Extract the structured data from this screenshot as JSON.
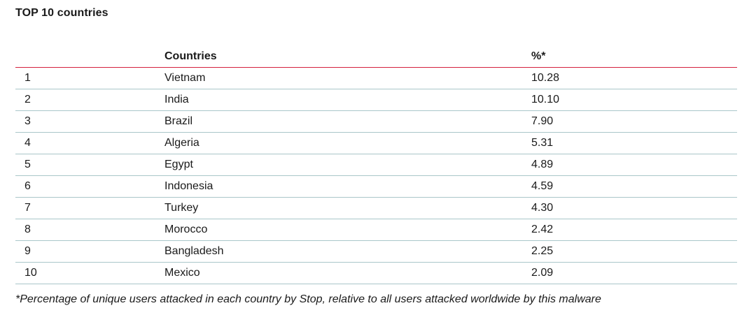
{
  "title": "TOP 10 countries",
  "table": {
    "headers": {
      "rank": "",
      "country": "Countries",
      "percent": "%*"
    },
    "rows": [
      {
        "rank": "1",
        "country": "Vietnam",
        "percent": "10.28"
      },
      {
        "rank": "2",
        "country": "India",
        "percent": "10.10"
      },
      {
        "rank": "3",
        "country": "Brazil",
        "percent": "7.90"
      },
      {
        "rank": "4",
        "country": "Algeria",
        "percent": "5.31"
      },
      {
        "rank": "5",
        "country": "Egypt",
        "percent": "4.89"
      },
      {
        "rank": "6",
        "country": "Indonesia",
        "percent": "4.59"
      },
      {
        "rank": "7",
        "country": "Turkey",
        "percent": "4.30"
      },
      {
        "rank": "8",
        "country": "Morocco",
        "percent": "2.42"
      },
      {
        "rank": "9",
        "country": "Bangladesh",
        "percent": "2.25"
      },
      {
        "rank": "10",
        "country": "Mexico",
        "percent": "2.09"
      }
    ]
  },
  "footnote": "*Percentage of unique users attacked in each country by Stop, relative to all users attacked worldwide by this malware",
  "colors": {
    "header_rule": "#d4213d",
    "row_rule": "#a9c6c9",
    "text": "#1a1a1a"
  }
}
